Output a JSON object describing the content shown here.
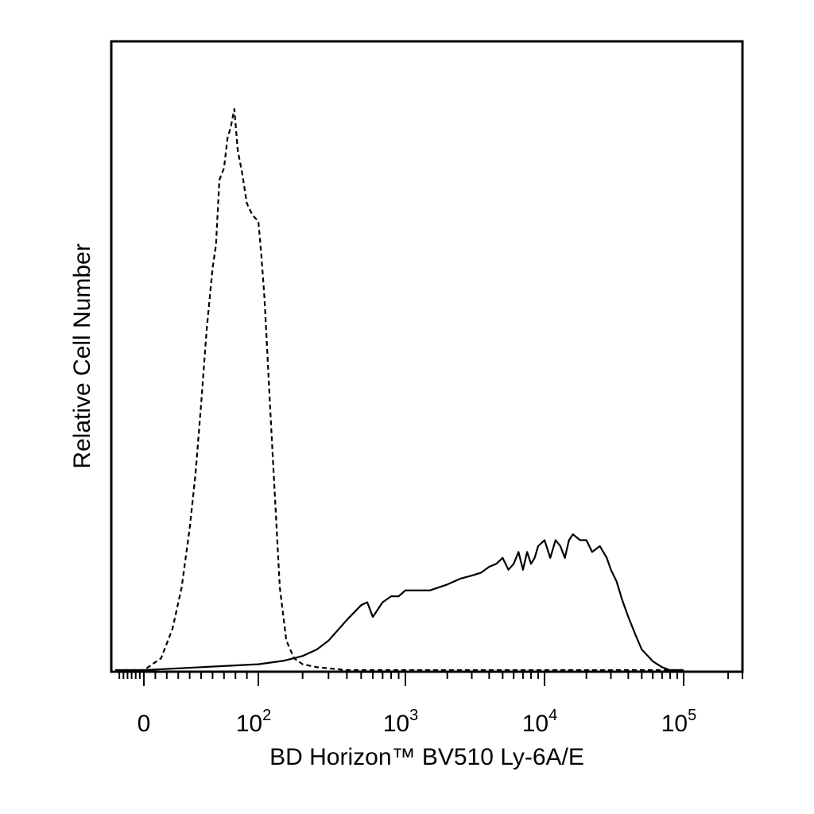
{
  "chart_data": {
    "type": "line",
    "title": "",
    "xlabel": "BD Horizon™ BV510 Ly-6A/E",
    "ylabel": "Relative Cell Number",
    "x_scale": "biexponential",
    "xlim": [
      -70,
      250000
    ],
    "ylim": [
      0,
      1.0
    ],
    "x_ticks": [
      {
        "value": 0,
        "base": "0",
        "exp": ""
      },
      {
        "value": 100,
        "base": "10",
        "exp": "2"
      },
      {
        "value": 1000,
        "base": "10",
        "exp": "3"
      },
      {
        "value": 10000,
        "base": "10",
        "exp": "4"
      },
      {
        "value": 100000,
        "base": "10",
        "exp": "5"
      }
    ],
    "grid": false,
    "series": [
      {
        "style": "dashed",
        "color": "#000000",
        "x": [
          -70,
          0,
          15,
          25,
          33,
          40,
          45,
          50,
          55,
          60,
          63,
          66,
          70,
          73,
          76,
          79,
          82,
          86,
          90,
          95,
          100,
          105,
          110,
          115,
          120,
          128,
          140,
          155,
          175,
          200,
          250,
          400,
          1000,
          5000,
          30000,
          60000,
          100000
        ],
        "y": [
          0,
          0,
          0.02,
          0.07,
          0.14,
          0.24,
          0.33,
          0.45,
          0.58,
          0.68,
          0.72,
          0.83,
          0.85,
          0.9,
          0.92,
          0.95,
          0.88,
          0.84,
          0.79,
          0.77,
          0.76,
          0.7,
          0.63,
          0.54,
          0.45,
          0.32,
          0.14,
          0.05,
          0.02,
          0.01,
          0.005,
          0,
          0,
          0,
          0,
          0,
          0
        ]
      },
      {
        "style": "solid",
        "color": "#000000",
        "x": [
          -70,
          0,
          50,
          100,
          150,
          200,
          250,
          300,
          400,
          500,
          550,
          600,
          700,
          800,
          900,
          1000,
          1200,
          1500,
          2000,
          2500,
          3000,
          3500,
          4000,
          4500,
          5000,
          5500,
          6000,
          6500,
          7000,
          7500,
          8000,
          8500,
          9000,
          10000,
          11000,
          12000,
          13000,
          14000,
          15000,
          16000,
          18000,
          20000,
          22000,
          25000,
          28000,
          30000,
          33000,
          36000,
          40000,
          45000,
          50000,
          60000,
          70000,
          80000,
          90000,
          100000
        ],
        "y": [
          0,
          0,
          0.005,
          0.01,
          0.016,
          0.024,
          0.035,
          0.05,
          0.085,
          0.11,
          0.115,
          0.09,
          0.115,
          0.125,
          0.125,
          0.135,
          0.135,
          0.135,
          0.145,
          0.155,
          0.16,
          0.165,
          0.175,
          0.18,
          0.19,
          0.17,
          0.18,
          0.2,
          0.17,
          0.2,
          0.18,
          0.19,
          0.21,
          0.22,
          0.19,
          0.22,
          0.21,
          0.19,
          0.22,
          0.23,
          0.22,
          0.22,
          0.2,
          0.21,
          0.19,
          0.17,
          0.15,
          0.12,
          0.09,
          0.06,
          0.035,
          0.015,
          0.005,
          0,
          0,
          0
        ]
      }
    ]
  }
}
